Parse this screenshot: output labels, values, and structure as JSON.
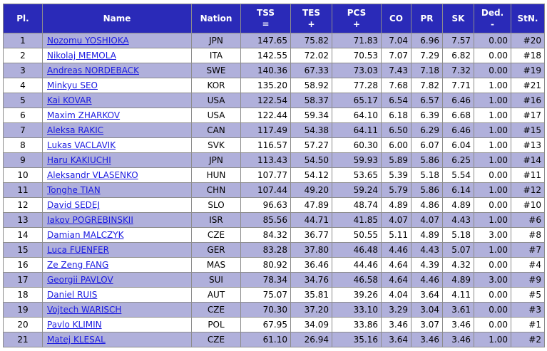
{
  "table": {
    "headers": {
      "pl": "Pl.",
      "name": "Name",
      "nation": "Nation",
      "tss": "TSS",
      "tss_sub": "=",
      "tes": "TES",
      "tes_sub": "+",
      "pcs": "PCS",
      "pcs_sub": "+",
      "co": "CO",
      "pr": "PR",
      "sk": "SK",
      "ded": "Ded.",
      "ded_sub": "-",
      "stn": "StN."
    },
    "rows": [
      {
        "pl": "1",
        "name": "Nozomu YOSHIOKA",
        "nation": "JPN",
        "tss": "147.65",
        "tes": "75.82",
        "pcs": "71.83",
        "co": "7.04",
        "pr": "6.96",
        "sk": "7.57",
        "ded": "0.00",
        "stn": "#20"
      },
      {
        "pl": "2",
        "name": "Nikolaj MEMOLA",
        "nation": "ITA",
        "tss": "142.55",
        "tes": "72.02",
        "pcs": "70.53",
        "co": "7.07",
        "pr": "7.29",
        "sk": "6.82",
        "ded": "0.00",
        "stn": "#18"
      },
      {
        "pl": "3",
        "name": "Andreas NORDEBACK",
        "nation": "SWE",
        "tss": "140.36",
        "tes": "67.33",
        "pcs": "73.03",
        "co": "7.43",
        "pr": "7.18",
        "sk": "7.32",
        "ded": "0.00",
        "stn": "#19"
      },
      {
        "pl": "4",
        "name": "Minkyu SEO",
        "nation": "KOR",
        "tss": "135.20",
        "tes": "58.92",
        "pcs": "77.28",
        "co": "7.68",
        "pr": "7.82",
        "sk": "7.71",
        "ded": "1.00",
        "stn": "#21"
      },
      {
        "pl": "5",
        "name": "Kai KOVAR",
        "nation": "USA",
        "tss": "122.54",
        "tes": "58.37",
        "pcs": "65.17",
        "co": "6.54",
        "pr": "6.57",
        "sk": "6.46",
        "ded": "1.00",
        "stn": "#16"
      },
      {
        "pl": "6",
        "name": "Maxim ZHARKOV",
        "nation": "USA",
        "tss": "122.44",
        "tes": "59.34",
        "pcs": "64.10",
        "co": "6.18",
        "pr": "6.39",
        "sk": "6.68",
        "ded": "1.00",
        "stn": "#17"
      },
      {
        "pl": "7",
        "name": "Aleksa RAKIC",
        "nation": "CAN",
        "tss": "117.49",
        "tes": "54.38",
        "pcs": "64.11",
        "co": "6.50",
        "pr": "6.29",
        "sk": "6.46",
        "ded": "1.00",
        "stn": "#15"
      },
      {
        "pl": "8",
        "name": "Lukas VACLAVIK",
        "nation": "SVK",
        "tss": "116.57",
        "tes": "57.27",
        "pcs": "60.30",
        "co": "6.00",
        "pr": "6.07",
        "sk": "6.04",
        "ded": "1.00",
        "stn": "#13"
      },
      {
        "pl": "9",
        "name": "Haru KAKIUCHI",
        "nation": "JPN",
        "tss": "113.43",
        "tes": "54.50",
        "pcs": "59.93",
        "co": "5.89",
        "pr": "5.86",
        "sk": "6.25",
        "ded": "1.00",
        "stn": "#14"
      },
      {
        "pl": "10",
        "name": "Aleksandr VLASENKO",
        "nation": "HUN",
        "tss": "107.77",
        "tes": "54.12",
        "pcs": "53.65",
        "co": "5.39",
        "pr": "5.18",
        "sk": "5.54",
        "ded": "0.00",
        "stn": "#11"
      },
      {
        "pl": "11",
        "name": "Tonghe TIAN",
        "nation": "CHN",
        "tss": "107.44",
        "tes": "49.20",
        "pcs": "59.24",
        "co": "5.79",
        "pr": "5.86",
        "sk": "6.14",
        "ded": "1.00",
        "stn": "#12"
      },
      {
        "pl": "12",
        "name": "David SEDEJ",
        "nation": "SLO",
        "tss": "96.63",
        "tes": "47.89",
        "pcs": "48.74",
        "co": "4.89",
        "pr": "4.86",
        "sk": "4.89",
        "ded": "0.00",
        "stn": "#10"
      },
      {
        "pl": "13",
        "name": "Iakov POGREBINSKII",
        "nation": "ISR",
        "tss": "85.56",
        "tes": "44.71",
        "pcs": "41.85",
        "co": "4.07",
        "pr": "4.07",
        "sk": "4.43",
        "ded": "1.00",
        "stn": "#6"
      },
      {
        "pl": "14",
        "name": "Damian MALCZYK",
        "nation": "CZE",
        "tss": "84.32",
        "tes": "36.77",
        "pcs": "50.55",
        "co": "5.11",
        "pr": "4.89",
        "sk": "5.18",
        "ded": "3.00",
        "stn": "#8"
      },
      {
        "pl": "15",
        "name": "Luca FUENFER",
        "nation": "GER",
        "tss": "83.28",
        "tes": "37.80",
        "pcs": "46.48",
        "co": "4.46",
        "pr": "4.43",
        "sk": "5.07",
        "ded": "1.00",
        "stn": "#7"
      },
      {
        "pl": "16",
        "name": "Ze Zeng FANG",
        "nation": "MAS",
        "tss": "80.92",
        "tes": "36.46",
        "pcs": "44.46",
        "co": "4.64",
        "pr": "4.39",
        "sk": "4.32",
        "ded": "0.00",
        "stn": "#4"
      },
      {
        "pl": "17",
        "name": "Georgii PAVLOV",
        "nation": "SUI",
        "tss": "78.34",
        "tes": "34.76",
        "pcs": "46.58",
        "co": "4.64",
        "pr": "4.46",
        "sk": "4.89",
        "ded": "3.00",
        "stn": "#9"
      },
      {
        "pl": "18",
        "name": "Daniel RUIS",
        "nation": "AUT",
        "tss": "75.07",
        "tes": "35.81",
        "pcs": "39.26",
        "co": "4.04",
        "pr": "3.64",
        "sk": "4.11",
        "ded": "0.00",
        "stn": "#5"
      },
      {
        "pl": "19",
        "name": "Vojtech WARISCH",
        "nation": "CZE",
        "tss": "70.30",
        "tes": "37.20",
        "pcs": "33.10",
        "co": "3.29",
        "pr": "3.04",
        "sk": "3.61",
        "ded": "0.00",
        "stn": "#3"
      },
      {
        "pl": "20",
        "name": "Pavlo KLIMIN",
        "nation": "POL",
        "tss": "67.95",
        "tes": "34.09",
        "pcs": "33.86",
        "co": "3.46",
        "pr": "3.07",
        "sk": "3.46",
        "ded": "0.00",
        "stn": "#1"
      },
      {
        "pl": "21",
        "name": "Matej KLESAL",
        "nation": "CZE",
        "tss": "61.10",
        "tes": "26.94",
        "pcs": "35.16",
        "co": "3.64",
        "pr": "3.46",
        "sk": "3.46",
        "ded": "1.00",
        "stn": "#2"
      }
    ]
  },
  "colors": {
    "header_background": "#2a2ab8",
    "header_text": "#ffffff",
    "odd_row": "#b0b0db",
    "even_row": "#ffffff",
    "link": "#1a1ae0",
    "border": "#8c8c8c"
  }
}
